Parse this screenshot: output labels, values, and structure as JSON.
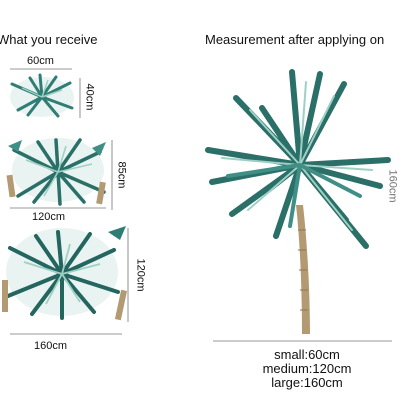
{
  "left_header": "What you receive",
  "right_header": "Measurement after applying on",
  "dimensions": {
    "small_width": "60cm",
    "small_height": "40cm",
    "medium_height": "85cm",
    "medium_width": "120cm",
    "large_height": "120cm",
    "large_width": "160cm",
    "applied_height": "160cm"
  },
  "sizes": [
    "small:60cm",
    "medium:120cm",
    "large:160cm"
  ],
  "colors": {
    "leaf_dark": "#1f5b55",
    "leaf_mid": "#3f8f86",
    "leaf_light": "#9fd0c5",
    "trunk": "#b39a72",
    "line": "#555555"
  }
}
